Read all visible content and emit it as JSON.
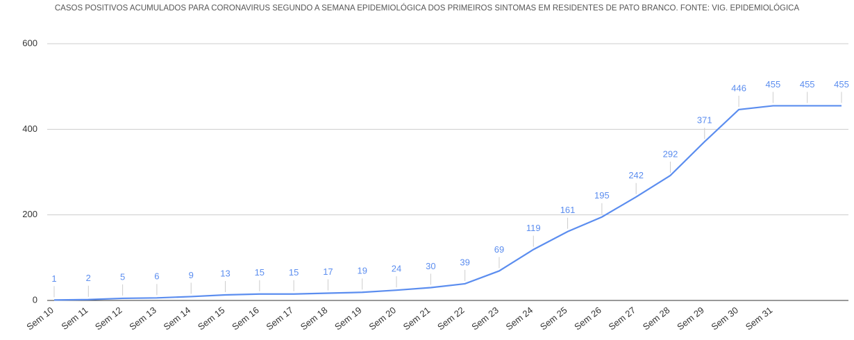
{
  "chart_data": {
    "type": "line",
    "title": "CASOS POSITIVOS ACUMULADOS PARA CORONAVIRUS SEGUNDO A SEMANA EPIDEMIOLÓGICA DOS PRIMEIROS SINTOMAS EM RESIDENTES DE PATO BRANCO. FONTE: VIG. EPIDEMIOLÓGICA",
    "categories": [
      "Sem 10",
      "Sem 11",
      "Sem 12",
      "Sem 13",
      "Sem 14",
      "Sem 15",
      "Sem 16",
      "Sem 17",
      "Sem 18",
      "Sem 19",
      "Sem 20",
      "Sem 21",
      "Sem 22",
      "Sem 23",
      "Sem 24",
      "Sem 25",
      "Sem 26",
      "Sem 27",
      "Sem 28",
      "Sem 29",
      "Sem 30",
      "Sem 31",
      null,
      null
    ],
    "values": [
      1,
      2,
      5,
      6,
      9,
      13,
      15,
      15,
      17,
      19,
      24,
      30,
      39,
      69,
      119,
      161,
      195,
      242,
      292,
      371,
      446,
      455,
      455,
      455
    ],
    "color": "#5b8def",
    "ylim": [
      0,
      600
    ],
    "yticks": [
      0,
      200,
      400,
      600
    ],
    "grid": true
  }
}
